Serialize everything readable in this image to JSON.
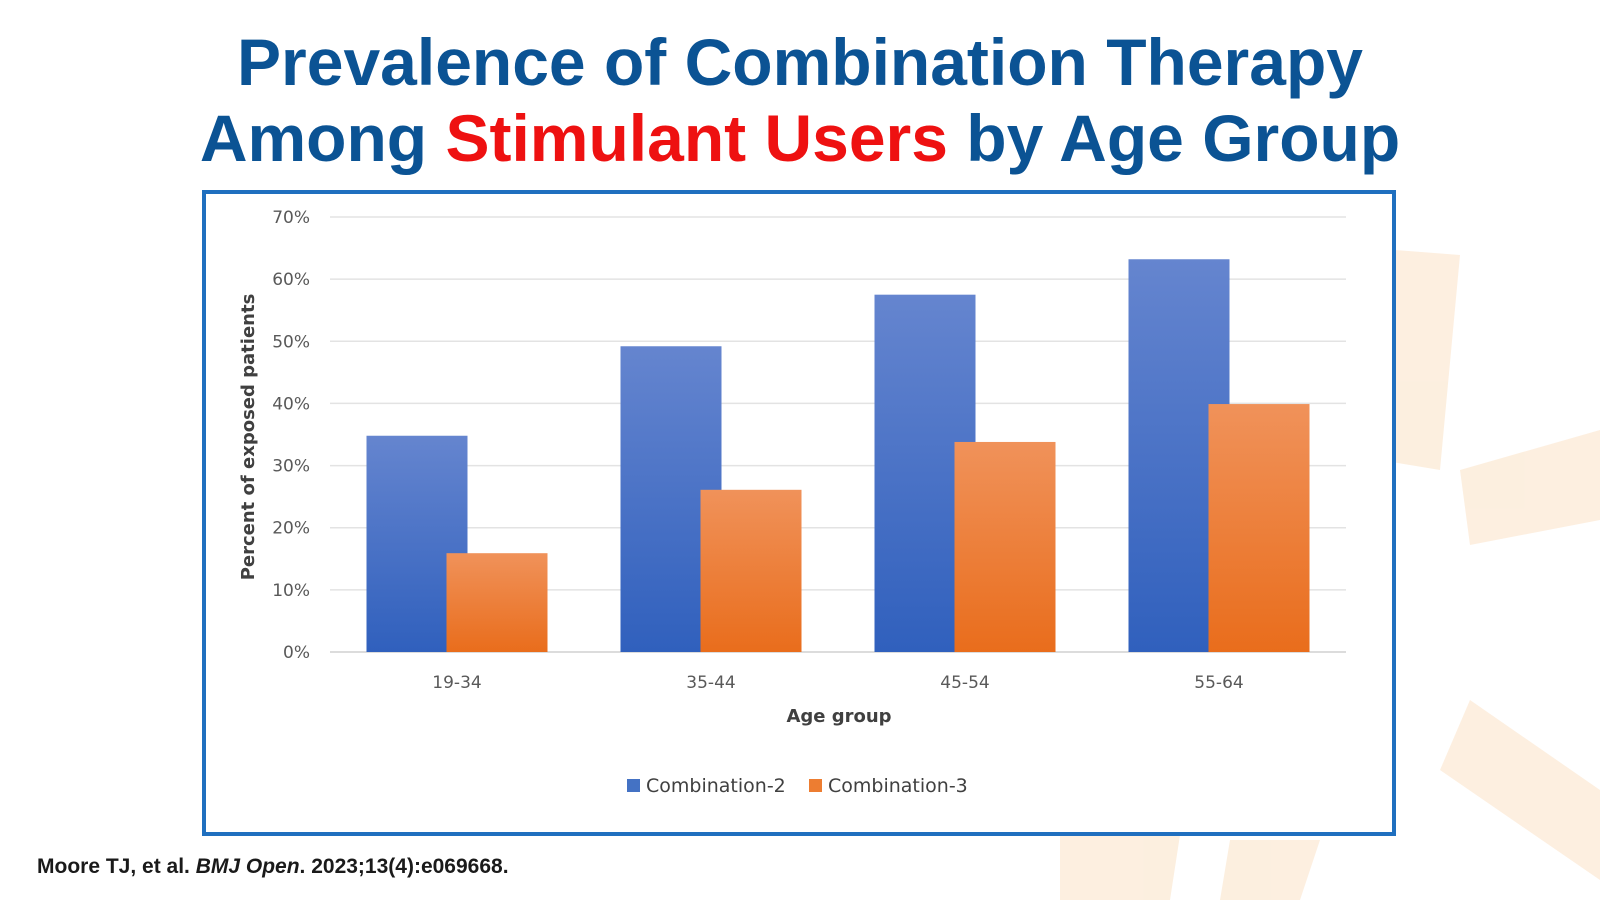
{
  "title": {
    "line1": "Prevalence of Combination Therapy",
    "line2_before": "Among ",
    "line2_highlight": "Stimulant Users",
    "line2_after": " by Age Group"
  },
  "citation": {
    "authors": "Moore TJ, et al. ",
    "journal": "BMJ Open",
    "details": ". 2023;13(4):e069668."
  },
  "colors": {
    "title": "#0b5394",
    "highlight": "#ee1111",
    "series1": "#4472c4",
    "series2": "#ed7d31",
    "frame": "#1f6fbf"
  },
  "chart_data": {
    "type": "bar",
    "title": "",
    "xlabel": "Age group",
    "ylabel": "Percent of exposed patients",
    "categories": [
      "19-34",
      "35-44",
      "45-54",
      "55-64"
    ],
    "series": [
      {
        "name": "Combination-2",
        "values": [
          34.8,
          49.2,
          57.5,
          63.2
        ]
      },
      {
        "name": "Combination-3",
        "values": [
          15.9,
          26.1,
          33.8,
          39.9
        ]
      }
    ],
    "ylim": [
      0,
      70
    ],
    "yticks": [
      0,
      10,
      20,
      30,
      40,
      50,
      60,
      70
    ],
    "ytick_labels": [
      "0%",
      "10%",
      "20%",
      "30%",
      "40%",
      "50%",
      "60%",
      "70%"
    ],
    "grid": true,
    "legend_position": "bottom"
  }
}
